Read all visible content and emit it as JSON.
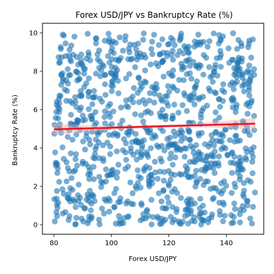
{
  "chart_data": {
    "type": "scatter",
    "title": "Forex USD/JPY vs Bankruptcy Rate (%)",
    "xlabel": "Forex USD/JPY",
    "ylabel": "Bankruptcy Rate (%)",
    "xlim": [
      76,
      153
    ],
    "ylim": [
      -0.5,
      10.5
    ],
    "xticks": [
      80,
      100,
      120,
      140
    ],
    "yticks": [
      0,
      2,
      4,
      6,
      8,
      10
    ],
    "grid": false,
    "legend": "none",
    "point_count": 1000,
    "x_range": [
      80,
      150
    ],
    "y_range": [
      0,
      10
    ],
    "trend_line": {
      "x": [
        80,
        150
      ],
      "y": [
        4.97,
        5.27
      ]
    },
    "colors": {
      "points": "#1f77b4",
      "trend_line": "#e6131b",
      "confidence_band": "#f4a3a8"
    }
  }
}
